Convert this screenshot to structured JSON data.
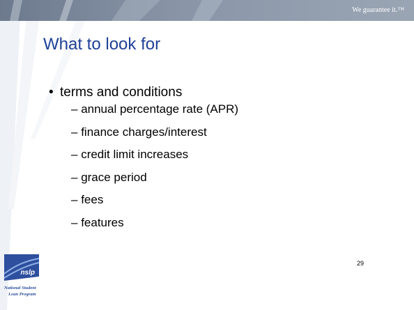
{
  "header": {
    "tagline": "We guarantee it.™"
  },
  "title": "What to look for",
  "bullets": [
    {
      "text": "terms and conditions",
      "items": [
        "annual percentage rate (APR)",
        "finance charges/interest",
        "credit limit increases",
        "grace period",
        "fees",
        "features"
      ]
    }
  ],
  "logo": {
    "mark": "nslp",
    "lines": [
      "National Student",
      "Loan Program"
    ]
  },
  "page_number": "29"
}
